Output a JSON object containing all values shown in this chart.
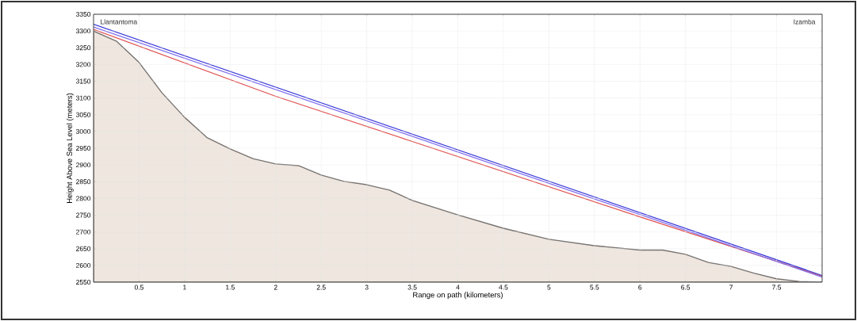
{
  "chart_data": {
    "type": "area",
    "xlabel": "Range on path (kilometers)",
    "ylabel": "Height Above Sea Level (meters)",
    "annotations": [
      "Llantantoma",
      "Izamba"
    ],
    "series": [
      {
        "color": "#eee6df",
        "x": [
          0,
          0.25,
          0.5,
          0.75,
          1,
          1.25,
          1.5,
          1.75,
          2,
          2.25,
          2.5,
          2.75,
          3,
          3.25,
          3.5,
          4,
          4.5,
          5,
          5.5,
          6,
          6.25,
          6.5,
          6.75,
          7,
          7.25,
          7.5,
          7.75,
          8
        ],
        "values": [
          3300,
          3270,
          3206,
          3116,
          3042,
          2981,
          2948,
          2919,
          2903,
          2898,
          2870,
          2851,
          2841,
          2825,
          2794,
          2751,
          2711,
          2678,
          2659,
          2646,
          2646,
          2633,
          2609,
          2597,
          2577,
          2560,
          2552,
          2550
        ]
      },
      {
        "type": "line",
        "color": "#e05050",
        "x": [
          0,
          1,
          2,
          3.5,
          6,
          8
        ],
        "values": [
          3305,
          3205,
          3105,
          2970,
          2745,
          2568
        ]
      },
      {
        "type": "line",
        "color": "#7b68ee",
        "x": [
          0,
          8
        ],
        "values": [
          3312,
          2565
        ]
      },
      {
        "type": "line",
        "color": "#3a3ad8",
        "x": [
          0,
          8
        ],
        "values": [
          3320,
          2570
        ]
      }
    ],
    "xlim": [
      0,
      8
    ],
    "ylim": [
      2550,
      3350
    ],
    "xticks": [
      0.5,
      1,
      1.5,
      2,
      2.5,
      3,
      3.5,
      4,
      4.5,
      5,
      5.5,
      6,
      6.5,
      7,
      7.5
    ],
    "yticks": [
      2550,
      2600,
      2650,
      2700,
      2750,
      2800,
      2850,
      2900,
      2950,
      3000,
      3050,
      3100,
      3150,
      3200,
      3250,
      3300,
      3350
    ],
    "grid": true,
    "line_style": "solid"
  }
}
